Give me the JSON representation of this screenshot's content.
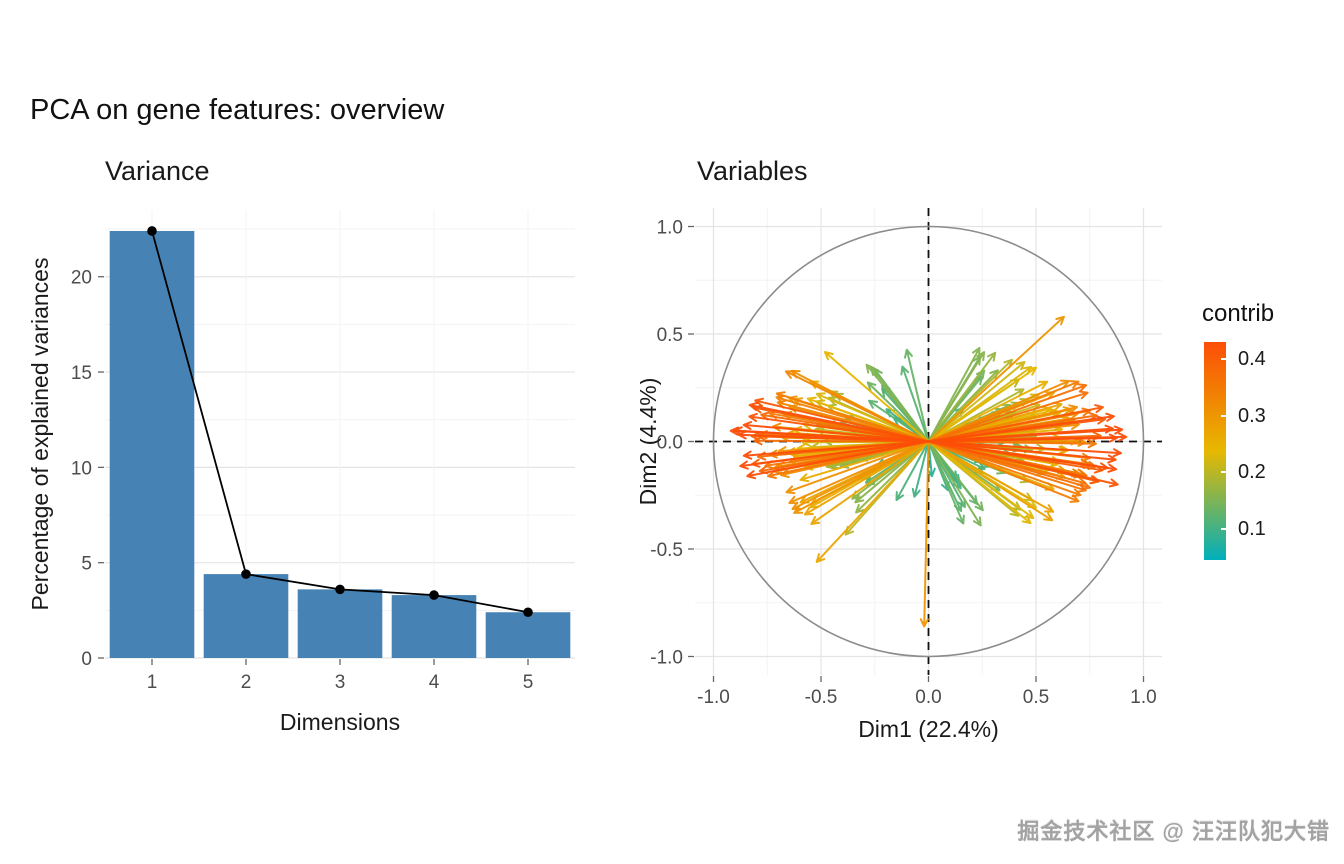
{
  "page": {
    "title": "PCA on gene features: overview",
    "watermark": "掘金技术社区 @ 汪汪队犯大错",
    "background": "#ffffff"
  },
  "chart_data": [
    {
      "type": "bar",
      "subtype": "scree-plot-with-line",
      "title": "Variance",
      "xlabel": "Dimensions",
      "ylabel": "Percentage of explained variances",
      "categories": [
        "1",
        "2",
        "3",
        "4",
        "5"
      ],
      "values": [
        22.4,
        4.4,
        3.6,
        3.3,
        2.4
      ],
      "ylim": [
        0,
        23.5
      ],
      "yticks": [
        0,
        5,
        10,
        15,
        20
      ],
      "bar_color": "#4682B4",
      "line_overlay": {
        "show": true,
        "color": "#000000",
        "point_color": "#000000"
      },
      "grid": true,
      "legend_position": "none"
    },
    {
      "type": "scatter",
      "subtype": "pca-variable-correlation-circle",
      "title": "Variables",
      "xlabel": "Dim1 (22.4%)",
      "ylabel": "Dim2 (4.4%)",
      "xlim": [
        -1.09,
        1.09
      ],
      "ylim": [
        -1.09,
        1.09
      ],
      "xticks": [
        -1.0,
        -0.5,
        0.0,
        0.5,
        1.0
      ],
      "yticks": [
        -1.0,
        -0.5,
        0.0,
        0.5,
        1.0
      ],
      "unit_circle": {
        "show": true,
        "color": "#8c8c8c"
      },
      "crosshair": {
        "style": "dashed",
        "color": "#111111"
      },
      "grid": true,
      "legend": {
        "title": "contrib",
        "position": "right",
        "ticks": [
          0.4,
          0.3,
          0.2,
          0.1
        ],
        "range": [
          0.045,
          0.43
        ],
        "colors": [
          "#00AFBB",
          "#E7B800",
          "#FC4E07"
        ]
      },
      "arrows": {
        "count": 250,
        "seed": 11,
        "x_extent": 0.95,
        "y_extent": 0.62,
        "origin": [
          0,
          0
        ]
      },
      "highlight_arrows": [
        {
          "x": -0.02,
          "y": -0.86,
          "contrib": 0.3
        },
        {
          "x": -0.52,
          "y": -0.56,
          "contrib": 0.27
        },
        {
          "x": 0.63,
          "y": 0.58,
          "contrib": 0.3
        },
        {
          "x": 0.88,
          "y": -0.2,
          "contrib": 0.42
        },
        {
          "x": -0.92,
          "y": 0.05,
          "contrib": 0.43
        }
      ]
    }
  ]
}
